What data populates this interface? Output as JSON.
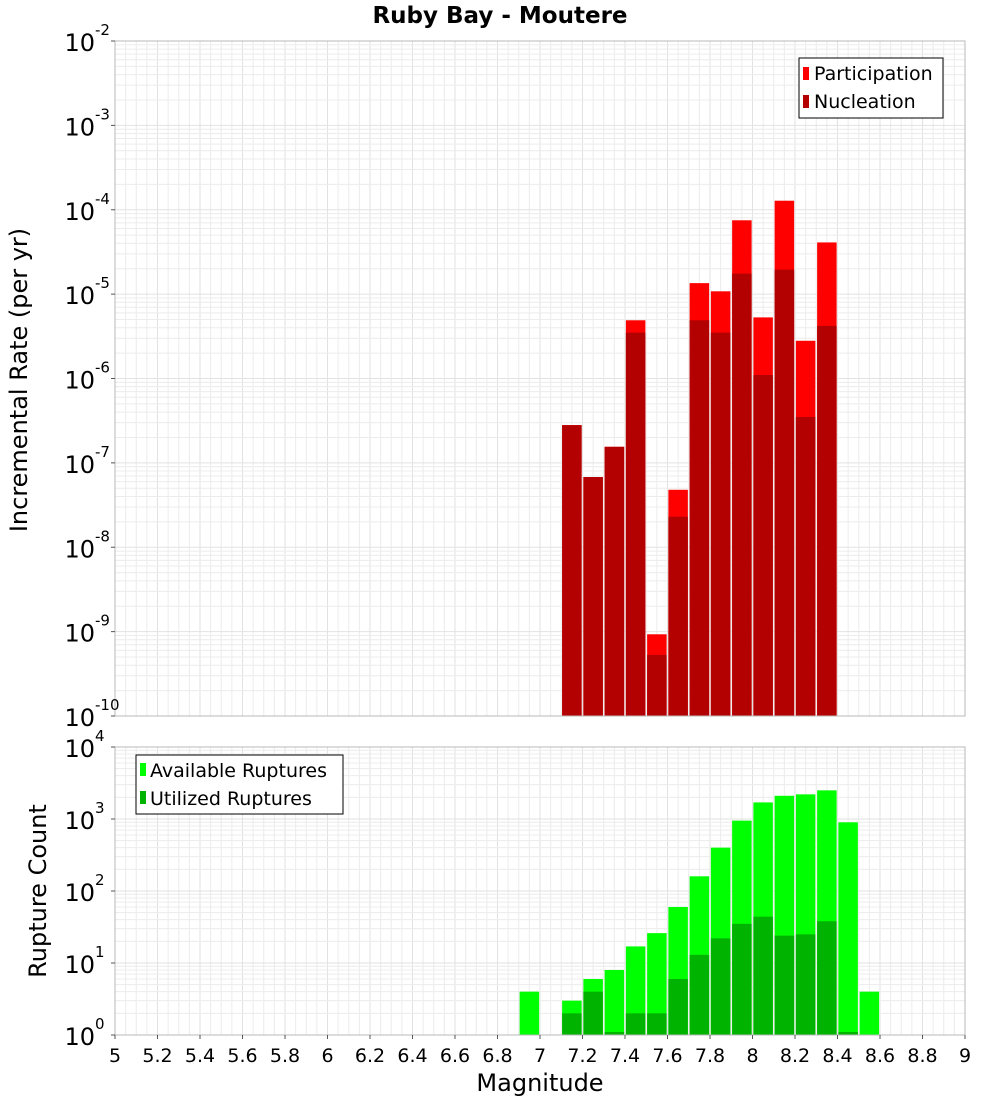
{
  "chart_data": [
    {
      "type": "bar",
      "title": "Ruby Bay - Moutere",
      "ylabel": "Incremental Rate (per yr)",
      "yscale": "log",
      "ylim": [
        1e-10,
        0.01
      ],
      "xlim": [
        5,
        9
      ],
      "y_tick_exponents": [
        "-10",
        "-9",
        "-8",
        "-7",
        "-6",
        "-5",
        "-4",
        "-3",
        "-2"
      ],
      "y_tick_base": "10",
      "grid": true,
      "legend_position": "top-right",
      "series": [
        {
          "name": "Participation",
          "color": "#ff0000",
          "x": [
            7.15,
            7.25,
            7.35,
            7.45,
            7.55,
            7.65,
            7.75,
            7.85,
            7.95,
            8.05,
            8.15,
            8.25,
            8.35
          ],
          "values": [
            2.8e-07,
            6.8e-08,
            1.55e-07,
            4.9e-06,
            9.3e-10,
            4.8e-08,
            1.35e-05,
            1.08e-05,
            7.5e-05,
            5.3e-06,
            0.000128,
            2.8e-06,
            4.1e-05
          ]
        },
        {
          "name": "Nucleation",
          "color": "#b30000",
          "x": [
            7.15,
            7.25,
            7.35,
            7.45,
            7.55,
            7.65,
            7.75,
            7.85,
            7.95,
            8.05,
            8.15,
            8.25,
            8.35
          ],
          "values": [
            2.8e-07,
            6.8e-08,
            1.55e-07,
            3.5e-06,
            5.3e-10,
            2.3e-08,
            4.9e-06,
            3.5e-06,
            1.75e-05,
            1.1e-06,
            1.95e-05,
            3.5e-07,
            4.2e-06
          ]
        }
      ]
    },
    {
      "type": "bar",
      "ylabel": "Rupture Count",
      "xlabel": "Magnitude",
      "yscale": "log",
      "ylim": [
        1,
        10000.0
      ],
      "xlim": [
        5,
        9
      ],
      "x_ticks": [
        "5",
        "5.2",
        "5.4",
        "5.6",
        "5.8",
        "6",
        "6.2",
        "6.4",
        "6.6",
        "6.8",
        "7",
        "7.2",
        "7.4",
        "7.6",
        "7.8",
        "8",
        "8.2",
        "8.4",
        "8.6",
        "8.8",
        "9"
      ],
      "y_tick_exponents": [
        "0",
        "1",
        "2",
        "3",
        "4"
      ],
      "y_tick_base": "10",
      "grid": true,
      "legend_position": "top-left",
      "series": [
        {
          "name": "Available Ruptures",
          "color": "#00ff00",
          "x": [
            6.95,
            7.15,
            7.25,
            7.35,
            7.45,
            7.55,
            7.65,
            7.75,
            7.85,
            7.95,
            8.05,
            8.15,
            8.25,
            8.35,
            8.45,
            8.55
          ],
          "values": [
            4,
            3,
            6,
            8,
            17,
            26,
            60,
            160,
            400,
            950,
            1700,
            2100,
            2200,
            2500,
            900,
            4
          ]
        },
        {
          "name": "Utilized Ruptures",
          "color": "#00b300",
          "x": [
            7.15,
            7.25,
            7.35,
            7.45,
            7.55,
            7.65,
            7.75,
            7.85,
            7.95,
            8.05,
            8.15,
            8.25,
            8.35,
            8.45
          ],
          "values": [
            2,
            4,
            1.1,
            2,
            2,
            6,
            13,
            22,
            35,
            44,
            24,
            25,
            38,
            1.1
          ]
        }
      ]
    }
  ]
}
